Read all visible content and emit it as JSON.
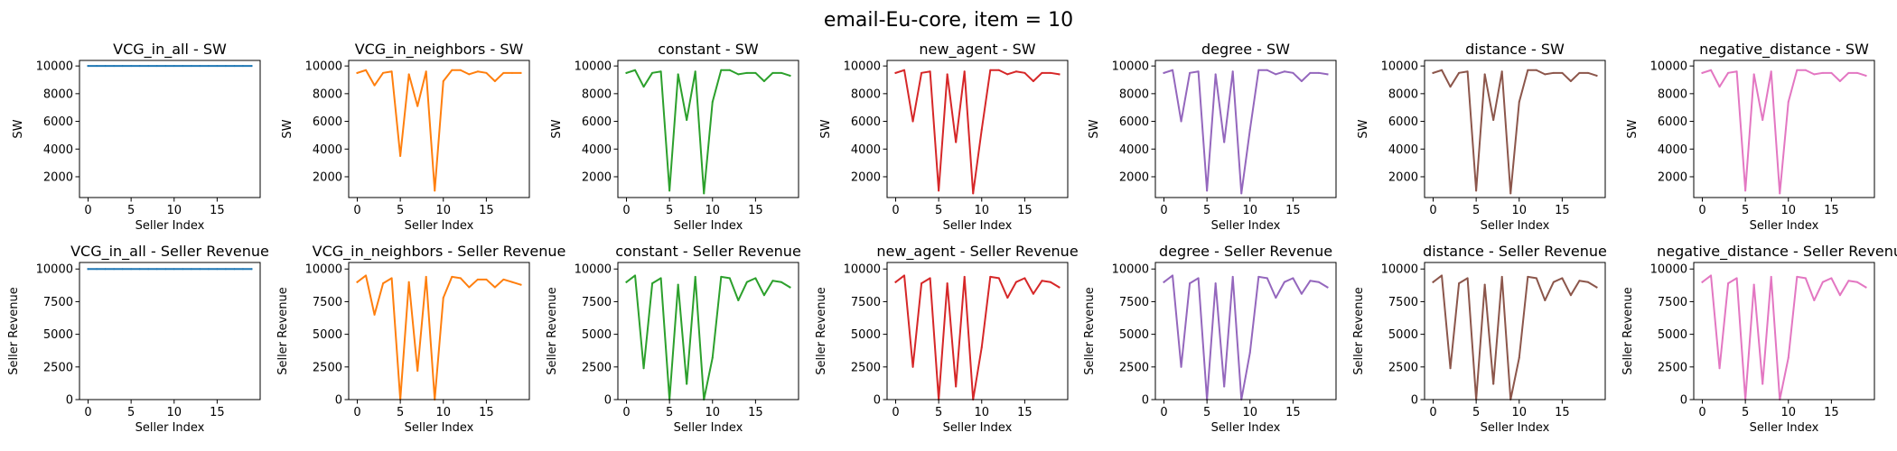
{
  "figure": {
    "suptitle": "email-Eu-core, item = 10"
  },
  "colors": [
    "#1f77b4",
    "#ff7f0e",
    "#2ca02c",
    "#d62728",
    "#9467bd",
    "#8c564b",
    "#e377c2"
  ],
  "chart_data": [
    {
      "type": "line",
      "row": 0,
      "col": 0,
      "title": "VCG_in_all - SW",
      "xlabel": "Seller Index",
      "ylabel": "SW",
      "xlim": [
        -1,
        20
      ],
      "ylim": [
        500,
        10400
      ],
      "xticks": [
        0,
        5,
        10,
        15
      ],
      "yticks": [
        2000,
        4000,
        6000,
        8000,
        10000
      ],
      "grid": false,
      "x": [
        0,
        1,
        2,
        3,
        4,
        5,
        6,
        7,
        8,
        9,
        10,
        11,
        12,
        13,
        14,
        15,
        16,
        17,
        18,
        19
      ],
      "series": [
        {
          "color_index": 0,
          "values": [
            10000,
            10000,
            10000,
            10000,
            10000,
            10000,
            10000,
            10000,
            10000,
            10000,
            10000,
            10000,
            10000,
            10000,
            10000,
            10000,
            10000,
            10000,
            10000,
            10000
          ]
        }
      ]
    },
    {
      "type": "line",
      "row": 0,
      "col": 1,
      "title": "VCG_in_neighbors - SW",
      "xlabel": "Seller Index",
      "ylabel": "SW",
      "xlim": [
        -1,
        20
      ],
      "ylim": [
        500,
        10400
      ],
      "xticks": [
        0,
        5,
        10,
        15
      ],
      "yticks": [
        2000,
        4000,
        6000,
        8000,
        10000
      ],
      "grid": false,
      "x": [
        0,
        1,
        2,
        3,
        4,
        5,
        6,
        7,
        8,
        9,
        10,
        11,
        12,
        13,
        14,
        15,
        16,
        17,
        18,
        19
      ],
      "series": [
        {
          "color_index": 1,
          "values": [
            9500,
            9700,
            8600,
            9500,
            9600,
            3500,
            9400,
            7100,
            9600,
            1000,
            8900,
            9700,
            9700,
            9400,
            9600,
            9500,
            8900,
            9500,
            9500,
            9500
          ]
        }
      ]
    },
    {
      "type": "line",
      "row": 0,
      "col": 2,
      "title": "constant - SW",
      "xlabel": "Seller Index",
      "ylabel": "SW",
      "xlim": [
        -1,
        20
      ],
      "ylim": [
        500,
        10400
      ],
      "xticks": [
        0,
        5,
        10,
        15
      ],
      "yticks": [
        2000,
        4000,
        6000,
        8000,
        10000
      ],
      "grid": false,
      "x": [
        0,
        1,
        2,
        3,
        4,
        5,
        6,
        7,
        8,
        9,
        10,
        11,
        12,
        13,
        14,
        15,
        16,
        17,
        18,
        19
      ],
      "series": [
        {
          "color_index": 2,
          "values": [
            9500,
            9700,
            8500,
            9500,
            9600,
            1000,
            9400,
            6100,
            9600,
            800,
            7400,
            9700,
            9700,
            9400,
            9500,
            9500,
            8900,
            9500,
            9500,
            9300
          ]
        }
      ]
    },
    {
      "type": "line",
      "row": 0,
      "col": 3,
      "title": "new_agent - SW",
      "xlabel": "Seller Index",
      "ylabel": "SW",
      "xlim": [
        -1,
        20
      ],
      "ylim": [
        500,
        10400
      ],
      "xticks": [
        0,
        5,
        10,
        15
      ],
      "yticks": [
        2000,
        4000,
        6000,
        8000,
        10000
      ],
      "grid": false,
      "x": [
        0,
        1,
        2,
        3,
        4,
        5,
        6,
        7,
        8,
        9,
        10,
        11,
        12,
        13,
        14,
        15,
        16,
        17,
        18,
        19
      ],
      "series": [
        {
          "color_index": 3,
          "values": [
            9500,
            9700,
            6000,
            9500,
            9600,
            1000,
            9400,
            4500,
            9600,
            800,
            5400,
            9700,
            9700,
            9400,
            9600,
            9500,
            8900,
            9500,
            9500,
            9400
          ]
        }
      ]
    },
    {
      "type": "line",
      "row": 0,
      "col": 4,
      "title": "degree - SW",
      "xlabel": "Seller Index",
      "ylabel": "SW",
      "xlim": [
        -1,
        20
      ],
      "ylim": [
        500,
        10400
      ],
      "xticks": [
        0,
        5,
        10,
        15
      ],
      "yticks": [
        2000,
        4000,
        6000,
        8000,
        10000
      ],
      "grid": false,
      "x": [
        0,
        1,
        2,
        3,
        4,
        5,
        6,
        7,
        8,
        9,
        10,
        11,
        12,
        13,
        14,
        15,
        16,
        17,
        18,
        19
      ],
      "series": [
        {
          "color_index": 4,
          "values": [
            9500,
            9700,
            6000,
            9500,
            9600,
            1000,
            9400,
            4500,
            9600,
            800,
            5400,
            9700,
            9700,
            9400,
            9600,
            9500,
            8900,
            9500,
            9500,
            9400
          ]
        }
      ]
    },
    {
      "type": "line",
      "row": 0,
      "col": 5,
      "title": "distance - SW",
      "xlabel": "Seller Index",
      "ylabel": "SW",
      "xlim": [
        -1,
        20
      ],
      "ylim": [
        500,
        10400
      ],
      "xticks": [
        0,
        5,
        10,
        15
      ],
      "yticks": [
        2000,
        4000,
        6000,
        8000,
        10000
      ],
      "grid": false,
      "x": [
        0,
        1,
        2,
        3,
        4,
        5,
        6,
        7,
        8,
        9,
        10,
        11,
        12,
        13,
        14,
        15,
        16,
        17,
        18,
        19
      ],
      "series": [
        {
          "color_index": 5,
          "values": [
            9500,
            9700,
            8500,
            9500,
            9600,
            1000,
            9400,
            6100,
            9600,
            800,
            7400,
            9700,
            9700,
            9400,
            9500,
            9500,
            8900,
            9500,
            9500,
            9300
          ]
        }
      ]
    },
    {
      "type": "line",
      "row": 0,
      "col": 6,
      "title": "negative_distance - SW",
      "xlabel": "Seller Index",
      "ylabel": "SW",
      "xlim": [
        -1,
        20
      ],
      "ylim": [
        500,
        10400
      ],
      "xticks": [
        0,
        5,
        10,
        15
      ],
      "yticks": [
        2000,
        4000,
        6000,
        8000,
        10000
      ],
      "grid": false,
      "x": [
        0,
        1,
        2,
        3,
        4,
        5,
        6,
        7,
        8,
        9,
        10,
        11,
        12,
        13,
        14,
        15,
        16,
        17,
        18,
        19
      ],
      "series": [
        {
          "color_index": 6,
          "values": [
            9500,
            9700,
            8500,
            9500,
            9600,
            1000,
            9400,
            6100,
            9600,
            800,
            7400,
            9700,
            9700,
            9400,
            9500,
            9500,
            8900,
            9500,
            9500,
            9300
          ]
        }
      ]
    },
    {
      "type": "line",
      "row": 1,
      "col": 0,
      "title": "VCG_in_all - Seller Revenue",
      "xlabel": "Seller Index",
      "ylabel": "Seller Revenue",
      "xlim": [
        -1,
        20
      ],
      "ylim": [
        0,
        10500
      ],
      "xticks": [
        0,
        5,
        10,
        15
      ],
      "yticks": [
        0,
        2500,
        5000,
        7500,
        10000
      ],
      "grid": false,
      "x": [
        0,
        1,
        2,
        3,
        4,
        5,
        6,
        7,
        8,
        9,
        10,
        11,
        12,
        13,
        14,
        15,
        16,
        17,
        18,
        19
      ],
      "series": [
        {
          "color_index": 0,
          "values": [
            10000,
            10000,
            10000,
            10000,
            10000,
            10000,
            10000,
            10000,
            10000,
            10000,
            10000,
            10000,
            10000,
            10000,
            10000,
            10000,
            10000,
            10000,
            10000,
            10000
          ]
        }
      ]
    },
    {
      "type": "line",
      "row": 1,
      "col": 1,
      "title": "VCG_in_neighbors - Seller Revenue",
      "xlabel": "Seller Index",
      "ylabel": "Seller Revenue",
      "xlim": [
        -1,
        20
      ],
      "ylim": [
        0,
        10500
      ],
      "xticks": [
        0,
        5,
        10,
        15
      ],
      "yticks": [
        0,
        2500,
        5000,
        7500,
        10000
      ],
      "grid": false,
      "x": [
        0,
        1,
        2,
        3,
        4,
        5,
        6,
        7,
        8,
        9,
        10,
        11,
        12,
        13,
        14,
        15,
        16,
        17,
        18,
        19
      ],
      "series": [
        {
          "color_index": 1,
          "values": [
            9000,
            9500,
            6500,
            8900,
            9300,
            0,
            9000,
            2200,
            9400,
            0,
            7800,
            9400,
            9300,
            8600,
            9200,
            9200,
            8600,
            9200,
            9000,
            8800
          ]
        }
      ]
    },
    {
      "type": "line",
      "row": 1,
      "col": 2,
      "title": "constant - Seller Revenue",
      "xlabel": "Seller Index",
      "ylabel": "Seller Revenue",
      "xlim": [
        -1,
        20
      ],
      "ylim": [
        0,
        10500
      ],
      "xticks": [
        0,
        5,
        10,
        15
      ],
      "yticks": [
        0,
        2500,
        5000,
        7500,
        10000
      ],
      "grid": false,
      "x": [
        0,
        1,
        2,
        3,
        4,
        5,
        6,
        7,
        8,
        9,
        10,
        11,
        12,
        13,
        14,
        15,
        16,
        17,
        18,
        19
      ],
      "series": [
        {
          "color_index": 2,
          "values": [
            9000,
            9500,
            2400,
            8900,
            9300,
            0,
            8800,
            1200,
            9400,
            0,
            3200,
            9400,
            9300,
            7600,
            9000,
            9300,
            8000,
            9100,
            9000,
            8600
          ]
        }
      ]
    },
    {
      "type": "line",
      "row": 1,
      "col": 3,
      "title": "new_agent - Seller Revenue",
      "xlabel": "Seller Index",
      "ylabel": "Seller Revenue",
      "xlim": [
        -1,
        20
      ],
      "ylim": [
        0,
        10500
      ],
      "xticks": [
        0,
        5,
        10,
        15
      ],
      "yticks": [
        0,
        2500,
        5000,
        7500,
        10000
      ],
      "grid": false,
      "x": [
        0,
        1,
        2,
        3,
        4,
        5,
        6,
        7,
        8,
        9,
        10,
        11,
        12,
        13,
        14,
        15,
        16,
        17,
        18,
        19
      ],
      "series": [
        {
          "color_index": 3,
          "values": [
            9000,
            9500,
            2500,
            8900,
            9300,
            0,
            8900,
            1000,
            9400,
            0,
            4000,
            9400,
            9300,
            7800,
            9000,
            9300,
            8100,
            9100,
            9000,
            8600
          ]
        }
      ]
    },
    {
      "type": "line",
      "row": 1,
      "col": 4,
      "title": "degree - Seller Revenue",
      "xlabel": "Seller Index",
      "ylabel": "Seller Revenue",
      "xlim": [
        -1,
        20
      ],
      "ylim": [
        0,
        10500
      ],
      "xticks": [
        0,
        5,
        10,
        15
      ],
      "yticks": [
        0,
        2500,
        5000,
        7500,
        10000
      ],
      "grid": false,
      "x": [
        0,
        1,
        2,
        3,
        4,
        5,
        6,
        7,
        8,
        9,
        10,
        11,
        12,
        13,
        14,
        15,
        16,
        17,
        18,
        19
      ],
      "series": [
        {
          "color_index": 4,
          "values": [
            9000,
            9500,
            2500,
            8900,
            9300,
            0,
            8900,
            1000,
            9400,
            0,
            3600,
            9400,
            9300,
            7800,
            9000,
            9300,
            8100,
            9100,
            9000,
            8600
          ]
        }
      ]
    },
    {
      "type": "line",
      "row": 1,
      "col": 5,
      "title": "distance - Seller Revenue",
      "xlabel": "Seller Index",
      "ylabel": "Seller Revenue",
      "xlim": [
        -1,
        20
      ],
      "ylim": [
        0,
        10500
      ],
      "xticks": [
        0,
        5,
        10,
        15
      ],
      "yticks": [
        0,
        2500,
        5000,
        7500,
        10000
      ],
      "grid": false,
      "x": [
        0,
        1,
        2,
        3,
        4,
        5,
        6,
        7,
        8,
        9,
        10,
        11,
        12,
        13,
        14,
        15,
        16,
        17,
        18,
        19
      ],
      "series": [
        {
          "color_index": 5,
          "values": [
            9000,
            9500,
            2400,
            8900,
            9300,
            0,
            8800,
            1200,
            9400,
            0,
            3200,
            9400,
            9300,
            7600,
            9000,
            9300,
            8000,
            9100,
            9000,
            8600
          ]
        }
      ]
    },
    {
      "type": "line",
      "row": 1,
      "col": 6,
      "title": "negative_distance - Seller Revenue",
      "xlabel": "Seller Index",
      "ylabel": "Seller Revenue",
      "xlim": [
        -1,
        20
      ],
      "ylim": [
        0,
        10500
      ],
      "xticks": [
        0,
        5,
        10,
        15
      ],
      "yticks": [
        0,
        2500,
        5000,
        7500,
        10000
      ],
      "grid": false,
      "x": [
        0,
        1,
        2,
        3,
        4,
        5,
        6,
        7,
        8,
        9,
        10,
        11,
        12,
        13,
        14,
        15,
        16,
        17,
        18,
        19
      ],
      "series": [
        {
          "color_index": 6,
          "values": [
            9000,
            9500,
            2400,
            8900,
            9300,
            0,
            8800,
            1200,
            9400,
            0,
            3200,
            9400,
            9300,
            7600,
            9000,
            9300,
            8000,
            9100,
            9000,
            8600
          ]
        }
      ]
    }
  ]
}
